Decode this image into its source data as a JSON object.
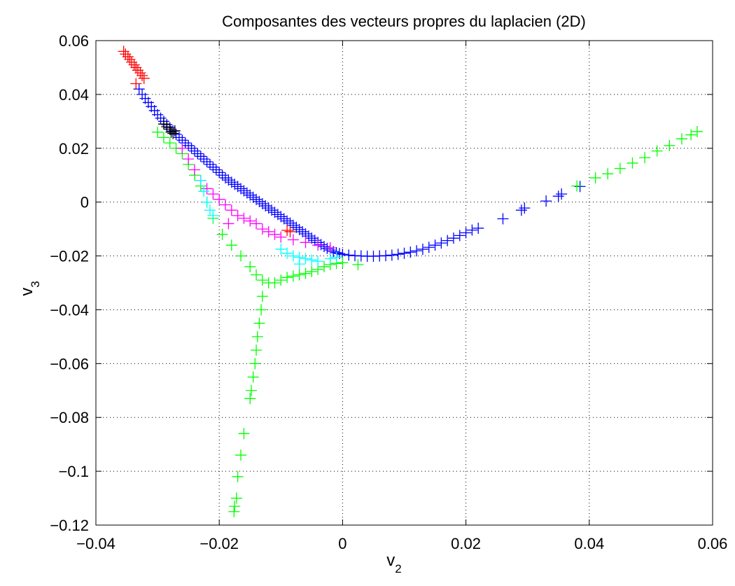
{
  "chart_data": {
    "type": "scatter",
    "title": "Composantes des vecteurs propres du laplacien (2D)",
    "xlabel": {
      "main": "v",
      "sub": "2"
    },
    "ylabel": {
      "main": "v",
      "sub": "3"
    },
    "xlim": [
      -0.04,
      0.06
    ],
    "ylim": [
      -0.12,
      0.06
    ],
    "xticks": [
      -0.04,
      -0.02,
      0,
      0.02,
      0.04,
      0.06
    ],
    "xtick_labels": [
      "−0.04",
      "−0.02",
      "0",
      "0.02",
      "0.04",
      "0.06"
    ],
    "yticks": [
      -0.12,
      -0.1,
      -0.08,
      -0.06,
      -0.04,
      -0.02,
      0,
      0.02,
      0.04,
      0.06
    ],
    "ytick_labels": [
      "−0.12",
      "−0.1",
      "−0.08",
      "−0.06",
      "−0.04",
      "−0.02",
      "0",
      "0.02",
      "0.04",
      "0.06"
    ],
    "grid": true,
    "marker": "+",
    "series": [
      {
        "color": "#0000ff",
        "points": [
          [
            -0.033,
            0.042
          ],
          [
            -0.0325,
            0.04
          ],
          [
            -0.032,
            0.0385
          ],
          [
            -0.0315,
            0.037
          ],
          [
            -0.031,
            0.0355
          ],
          [
            -0.0305,
            0.034
          ],
          [
            -0.03,
            0.0325
          ],
          [
            -0.0295,
            0.0312
          ],
          [
            -0.029,
            0.03
          ],
          [
            -0.0285,
            0.0288
          ],
          [
            -0.028,
            0.0276
          ],
          [
            -0.0275,
            0.0264
          ],
          [
            -0.027,
            0.0252
          ],
          [
            -0.0265,
            0.024
          ],
          [
            -0.026,
            0.023
          ],
          [
            -0.0255,
            0.022
          ],
          [
            -0.025,
            0.021
          ],
          [
            -0.0245,
            0.02
          ],
          [
            -0.024,
            0.019
          ],
          [
            -0.0235,
            0.018
          ],
          [
            -0.023,
            0.017
          ],
          [
            -0.0225,
            0.016
          ],
          [
            -0.022,
            0.015
          ],
          [
            -0.0215,
            0.014
          ],
          [
            -0.021,
            0.013
          ],
          [
            -0.0205,
            0.012
          ],
          [
            -0.02,
            0.011
          ],
          [
            -0.0195,
            0.01
          ],
          [
            -0.019,
            0.009
          ],
          [
            -0.0185,
            0.0082
          ],
          [
            -0.018,
            0.0074
          ],
          [
            -0.0175,
            0.0066
          ],
          [
            -0.017,
            0.0058
          ],
          [
            -0.0165,
            0.005
          ],
          [
            -0.016,
            0.0042
          ],
          [
            -0.0155,
            0.0034
          ],
          [
            -0.015,
            0.0026
          ],
          [
            -0.0145,
            0.0018
          ],
          [
            -0.014,
            0.001
          ],
          [
            -0.0135,
            0.0002
          ],
          [
            -0.013,
            -0.0006
          ],
          [
            -0.0125,
            -0.0014
          ],
          [
            -0.012,
            -0.0022
          ],
          [
            -0.0115,
            -0.003
          ],
          [
            -0.011,
            -0.0038
          ],
          [
            -0.0105,
            -0.0046
          ],
          [
            -0.01,
            -0.0054
          ],
          [
            -0.0095,
            -0.0062
          ],
          [
            -0.009,
            -0.007
          ],
          [
            -0.0085,
            -0.0078
          ],
          [
            -0.008,
            -0.0086
          ],
          [
            -0.0075,
            -0.0094
          ],
          [
            -0.007,
            -0.0102
          ],
          [
            -0.0065,
            -0.011
          ],
          [
            -0.006,
            -0.0118
          ],
          [
            -0.0055,
            -0.0126
          ],
          [
            -0.005,
            -0.0134
          ],
          [
            -0.0045,
            -0.0142
          ],
          [
            -0.004,
            -0.015
          ],
          [
            -0.0035,
            -0.0158
          ],
          [
            -0.003,
            -0.0165
          ],
          [
            -0.0025,
            -0.0172
          ],
          [
            -0.002,
            -0.0178
          ],
          [
            -0.0015,
            -0.0184
          ],
          [
            -0.001,
            -0.0188
          ],
          [
            -0.0005,
            -0.0191
          ],
          [
            0.0,
            -0.0194
          ],
          [
            0.001,
            -0.0197
          ],
          [
            0.002,
            -0.0199
          ],
          [
            0.003,
            -0.02
          ],
          [
            0.004,
            -0.0201
          ],
          [
            0.005,
            -0.0201
          ],
          [
            0.006,
            -0.02
          ],
          [
            0.007,
            -0.0199
          ],
          [
            0.008,
            -0.0197
          ],
          [
            0.009,
            -0.0194
          ],
          [
            0.01,
            -0.019
          ],
          [
            0.011,
            -0.0186
          ],
          [
            0.012,
            -0.0181
          ],
          [
            0.013,
            -0.0175
          ],
          [
            0.014,
            -0.0168
          ],
          [
            0.015,
            -0.016
          ],
          [
            0.016,
            -0.0152
          ],
          [
            0.017,
            -0.0143
          ],
          [
            0.018,
            -0.0134
          ],
          [
            0.019,
            -0.0124
          ],
          [
            0.02,
            -0.0114
          ],
          [
            0.021,
            -0.0104
          ],
          [
            0.022,
            -0.0097
          ],
          [
            0.026,
            -0.0062
          ],
          [
            0.029,
            -0.003
          ],
          [
            0.0295,
            -0.0022
          ],
          [
            0.033,
            0.0004
          ],
          [
            0.035,
            0.0022
          ],
          [
            0.0355,
            0.003
          ],
          [
            0.0385,
            0.0058
          ]
        ]
      },
      {
        "color": "#ff0000",
        "points": [
          [
            -0.0355,
            0.056
          ],
          [
            -0.0352,
            0.055
          ],
          [
            -0.0348,
            0.054
          ],
          [
            -0.0345,
            0.053
          ],
          [
            -0.0342,
            0.052
          ],
          [
            -0.0338,
            0.051
          ],
          [
            -0.0335,
            0.05
          ],
          [
            -0.0332,
            0.049
          ],
          [
            -0.0328,
            0.048
          ],
          [
            -0.0325,
            0.047
          ],
          [
            -0.0322,
            0.046
          ],
          [
            -0.0335,
            0.044
          ],
          [
            -0.009,
            -0.0105
          ],
          [
            -0.0085,
            -0.011
          ]
        ]
      },
      {
        "color": "#00ff00",
        "points": [
          [
            -0.03,
            0.026
          ],
          [
            -0.029,
            0.024
          ],
          [
            -0.028,
            0.022
          ],
          [
            -0.027,
            0.02
          ],
          [
            -0.026,
            0.018
          ],
          [
            -0.025,
            0.014
          ],
          [
            -0.024,
            0.01
          ],
          [
            -0.023,
            0.006
          ],
          [
            -0.022,
            0.0
          ],
          [
            -0.021,
            -0.006
          ],
          [
            -0.0195,
            -0.012
          ],
          [
            -0.018,
            -0.016
          ],
          [
            -0.0165,
            -0.02
          ],
          [
            -0.015,
            -0.024
          ],
          [
            -0.014,
            -0.027
          ],
          [
            -0.013,
            -0.029
          ],
          [
            -0.012,
            -0.03
          ],
          [
            -0.011,
            -0.03
          ],
          [
            -0.01,
            -0.029
          ],
          [
            -0.009,
            -0.028
          ],
          [
            -0.008,
            -0.0275
          ],
          [
            -0.007,
            -0.027
          ],
          [
            -0.006,
            -0.0265
          ],
          [
            -0.005,
            -0.0258
          ],
          [
            -0.004,
            -0.025
          ],
          [
            -0.003,
            -0.024
          ],
          [
            -0.002,
            -0.0232
          ],
          [
            -0.001,
            -0.0228
          ],
          [
            0.0,
            -0.0225
          ],
          [
            0.0025,
            -0.0232
          ],
          [
            -0.013,
            -0.035
          ],
          [
            -0.0132,
            -0.04
          ],
          [
            -0.0135,
            -0.045
          ],
          [
            -0.0138,
            -0.05
          ],
          [
            -0.014,
            -0.055
          ],
          [
            -0.0142,
            -0.06
          ],
          [
            -0.0145,
            -0.065
          ],
          [
            -0.0148,
            -0.07
          ],
          [
            -0.015,
            -0.073
          ],
          [
            -0.016,
            -0.086
          ],
          [
            -0.0165,
            -0.094
          ],
          [
            -0.017,
            -0.102
          ],
          [
            -0.0172,
            -0.11
          ],
          [
            -0.0175,
            -0.113
          ],
          [
            -0.0176,
            -0.115
          ],
          [
            0.038,
            0.006
          ],
          [
            0.041,
            0.009
          ],
          [
            0.043,
            0.0105
          ],
          [
            0.045,
            0.0125
          ],
          [
            0.047,
            0.0145
          ],
          [
            0.049,
            0.0165
          ],
          [
            0.051,
            0.019
          ],
          [
            0.053,
            0.021
          ],
          [
            0.055,
            0.0235
          ],
          [
            0.0565,
            0.025
          ],
          [
            0.0575,
            0.0262
          ]
        ]
      },
      {
        "color": "#ff00ff",
        "points": [
          [
            -0.026,
            0.02
          ],
          [
            -0.025,
            0.016
          ],
          [
            -0.024,
            0.012
          ],
          [
            -0.023,
            0.008
          ],
          [
            -0.022,
            0.005
          ],
          [
            -0.021,
            0.003
          ],
          [
            -0.02,
            0.001
          ],
          [
            -0.019,
            -0.001
          ],
          [
            -0.018,
            -0.003
          ],
          [
            -0.017,
            -0.005
          ],
          [
            -0.016,
            -0.006
          ],
          [
            -0.015,
            -0.007
          ],
          [
            -0.014,
            -0.008
          ],
          [
            -0.013,
            -0.01
          ],
          [
            -0.012,
            -0.011
          ],
          [
            -0.011,
            -0.012
          ],
          [
            -0.01,
            -0.013
          ],
          [
            -0.008,
            -0.014
          ],
          [
            -0.006,
            -0.015
          ],
          [
            -0.004,
            -0.016
          ],
          [
            -0.002,
            -0.017
          ],
          [
            -0.0185,
            -0.008
          ]
        ]
      },
      {
        "color": "#00ffff",
        "points": [
          [
            -0.023,
            0.008
          ],
          [
            -0.0225,
            0.004
          ],
          [
            -0.022,
            0.0
          ],
          [
            -0.0215,
            -0.003
          ],
          [
            -0.021,
            -0.005
          ],
          [
            -0.01,
            -0.0175
          ],
          [
            -0.009,
            -0.019
          ],
          [
            -0.008,
            -0.02
          ],
          [
            -0.007,
            -0.0205
          ],
          [
            -0.006,
            -0.021
          ],
          [
            -0.005,
            -0.0215
          ],
          [
            -0.004,
            -0.022
          ],
          [
            -0.002,
            -0.021
          ],
          [
            -0.001,
            -0.0205
          ],
          [
            -0.007,
            -0.023
          ]
        ]
      },
      {
        "color": "#000000",
        "points": [
          [
            -0.029,
            0.029
          ],
          [
            -0.0285,
            0.028
          ],
          [
            -0.028,
            0.027
          ],
          [
            -0.0278,
            0.026
          ],
          [
            -0.0275,
            0.0255
          ],
          [
            -0.0272,
            0.0265
          ]
        ]
      }
    ]
  }
}
